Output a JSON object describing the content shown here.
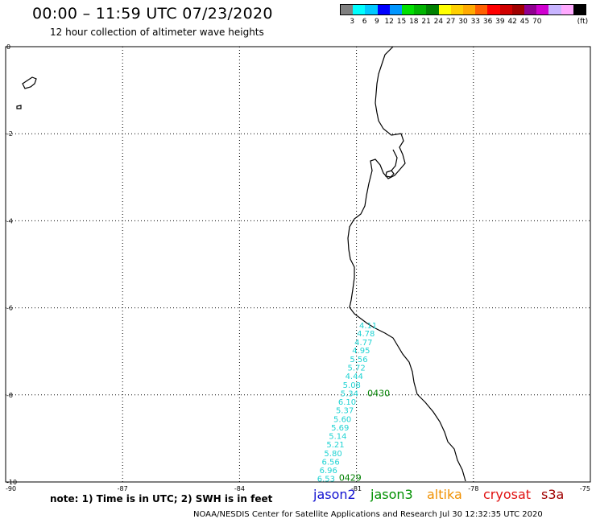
{
  "header": {
    "title": "00:00 – 11:59 UTC 07/23/2020",
    "subtitle": "12 hour collection of altimeter wave heights"
  },
  "legend": {
    "colors": [
      "#808080",
      "#00ffff",
      "#00c8ff",
      "#0000ff",
      "#0096ff",
      "#00e000",
      "#00b400",
      "#008000",
      "#ffff00",
      "#ffd000",
      "#ffaa00",
      "#ff6000",
      "#ff0000",
      "#d00000",
      "#a00000",
      "#900090",
      "#d000d0",
      "#c8b4ff",
      "#ffaaff",
      "#000000"
    ],
    "ticks": [
      "3",
      "6",
      "9",
      "12",
      "15",
      "18",
      "21",
      "24",
      "27",
      "30",
      "33",
      "36",
      "39",
      "42",
      "45",
      "70",
      "(ft)"
    ]
  },
  "map": {
    "lon_labels": [
      "-90",
      "-87",
      "-84",
      "-81",
      "-78",
      "-75"
    ],
    "lat_labels": [
      "0",
      "-2",
      "-4",
      "-6",
      "-8",
      "-10"
    ],
    "lon_range": [
      -90,
      -75
    ],
    "lat_range": [
      0,
      -10
    ],
    "track": {
      "satellite": "jason3",
      "color": "#1fd3d3",
      "points": [
        {
          "label": "4.11",
          "lon": -80.7,
          "lat": -6.4
        },
        {
          "label": "4.78",
          "lon": -80.76,
          "lat": -6.58
        },
        {
          "label": "4.77",
          "lon": -80.82,
          "lat": -6.78
        },
        {
          "label": "4.95",
          "lon": -80.88,
          "lat": -6.97
        },
        {
          "label": "5.56",
          "lon": -80.94,
          "lat": -7.17
        },
        {
          "label": "5.72",
          "lon": -81.0,
          "lat": -7.37
        },
        {
          "label": "4.44",
          "lon": -81.06,
          "lat": -7.56
        },
        {
          "label": "5.08",
          "lon": -81.12,
          "lat": -7.76
        },
        {
          "label": "5.34",
          "lon": -81.18,
          "lat": -7.96
        },
        {
          "label": "6.10",
          "lon": -81.24,
          "lat": -8.15
        },
        {
          "label": "5.37",
          "lon": -81.3,
          "lat": -8.35
        },
        {
          "label": "5.60",
          "lon": -81.36,
          "lat": -8.55
        },
        {
          "label": "5.69",
          "lon": -81.42,
          "lat": -8.74
        },
        {
          "label": "5.14",
          "lon": -81.48,
          "lat": -8.94
        },
        {
          "label": "5.21",
          "lon": -81.54,
          "lat": -9.13
        },
        {
          "label": "5.80",
          "lon": -81.6,
          "lat": -9.33
        },
        {
          "label": "6.56",
          "lon": -81.66,
          "lat": -9.53
        },
        {
          "label": "6.96",
          "lon": -81.72,
          "lat": -9.72
        },
        {
          "label": "6.53",
          "lon": -81.78,
          "lat": -9.92
        }
      ],
      "times": [
        {
          "label": "0430",
          "lon": -80.72,
          "lat": -7.96
        },
        {
          "label": "0429",
          "lon": -81.45,
          "lat": -9.9
        }
      ]
    }
  },
  "footer": {
    "note": "note: 1) Time is in UTC; 2) SWH is in feet",
    "satellites": {
      "jason2": "jason2",
      "jason3": "jason3",
      "altika": "altika",
      "cryosat": "cryosat",
      "s3a": "s3a"
    },
    "credit": "NOAA/NESDIS Center for Satellite Applications and Research    Jul 30 12:32:35 UTC 2020"
  }
}
